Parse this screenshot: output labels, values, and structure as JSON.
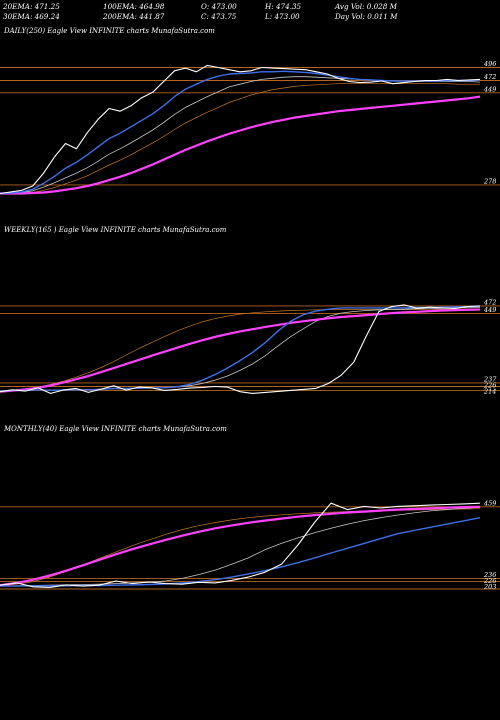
{
  "stats": {
    "ema20": "20EMA: 471.25",
    "ema100": "100EMA: 464.98",
    "open": "O: 473.00",
    "high": "H: 474.35",
    "avg_vol": "Avg Vol: 0.028  M",
    "ema30": "30EMA: 469.24",
    "ema200": "200EMA: 441.87",
    "close": "C: 473.75",
    "low": "L: 473.00",
    "day_vol": "Day Vol: 0.011 M"
  },
  "colors": {
    "background": "#000000",
    "level_line": "#b5651d",
    "price": "#ffffff",
    "ema_fast": "#3f6fe8",
    "ema_slow": "#ff40ff",
    "ema_mid": "#c8c8c8",
    "ema_brown": "#c87820"
  },
  "chart_data": [
    {
      "type": "line",
      "title": "DAILY(250) Eagle   View  INFINITE charts MunafaSutra.com",
      "ylim": [
        250,
        510
      ],
      "levels": [
        496,
        472,
        449,
        278
      ],
      "tick_labels": [
        "496",
        "472",
        "449",
        "278"
      ],
      "series": [
        {
          "role": "price",
          "values": [
            262,
            265,
            268,
            276,
            300,
            330,
            355,
            345,
            375,
            400,
            420,
            415,
            425,
            440,
            450,
            470,
            490,
            495,
            488,
            500,
            496,
            492,
            488,
            490,
            496,
            495,
            494,
            493,
            492,
            488,
            484,
            476,
            470,
            468,
            469,
            471,
            466,
            468,
            470,
            472,
            472,
            474,
            472,
            473,
            474
          ]
        },
        {
          "role": "ema_fast",
          "values": [
            262,
            263,
            265,
            270,
            281,
            294,
            309,
            320,
            334,
            349,
            364,
            374,
            386,
            398,
            410,
            425,
            442,
            456,
            465,
            474,
            480,
            484,
            485,
            486,
            488,
            488,
            489,
            488,
            487,
            485,
            482,
            479,
            476,
            474,
            473,
            472,
            471,
            471,
            471,
            471,
            471,
            472,
            472,
            472,
            473
          ]
        },
        {
          "role": "ema_mid",
          "values": [
            262,
            263,
            264,
            267,
            274,
            282,
            291,
            300,
            310,
            322,
            335,
            345,
            356,
            368,
            380,
            394,
            409,
            422,
            432,
            442,
            451,
            460,
            465,
            470,
            474,
            476,
            478,
            479,
            479,
            478,
            477,
            476,
            475,
            474,
            473,
            472,
            471,
            471,
            470,
            470,
            470,
            470,
            470,
            470,
            469
          ]
        },
        {
          "role": "ema_brown",
          "values": [
            262,
            262,
            263,
            264,
            268,
            273,
            280,
            287,
            295,
            305,
            315,
            324,
            334,
            345,
            356,
            368,
            381,
            393,
            403,
            413,
            422,
            431,
            438,
            445,
            450,
            455,
            458,
            461,
            463,
            464,
            465,
            466,
            466,
            466,
            466,
            466,
            466,
            466,
            466,
            466,
            466,
            466,
            465,
            465,
            465
          ]
        },
        {
          "role": "ema_slow",
          "values": [
            262,
            262,
            262,
            263,
            264,
            266,
            269,
            272,
            276,
            281,
            287,
            293,
            300,
            308,
            316,
            325,
            334,
            343,
            351,
            359,
            366,
            373,
            379,
            385,
            390,
            395,
            399,
            403,
            406,
            409,
            412,
            415,
            417,
            419,
            421,
            423,
            425,
            427,
            429,
            431,
            433,
            435,
            437,
            439,
            442
          ]
        }
      ]
    },
    {
      "type": "line",
      "title": "WEEKLY(165                    ) Eagle   View  INFINITE charts MunafaSutra.com",
      "ylim": [
        200,
        490
      ],
      "levels": [
        472,
        449,
        237,
        226,
        214
      ],
      "tick_labels": [
        "472",
        "449",
        "237",
        "226",
        "214"
      ],
      "series": [
        {
          "role": "price",
          "values": [
            210,
            216,
            212,
            222,
            205,
            215,
            220,
            208,
            218,
            228,
            215,
            224,
            222,
            214,
            217,
            221,
            223,
            226,
            224,
            210,
            205,
            208,
            211,
            214,
            217,
            220,
            235,
            260,
            300,
            380,
            455,
            470,
            475,
            465,
            468,
            466,
            464,
            470,
            472
          ]
        },
        {
          "role": "ema_fast",
          "values": [
            212,
            214,
            214,
            216,
            214,
            215,
            216,
            216,
            217,
            220,
            220,
            221,
            222,
            222,
            225,
            232,
            245,
            262,
            282,
            305,
            330,
            360,
            395,
            425,
            445,
            456,
            462,
            466,
            466,
            466,
            466,
            466,
            466,
            467,
            467,
            468,
            469,
            470,
            471
          ]
        },
        {
          "role": "ema_mid",
          "values": [
            212,
            213,
            214,
            215,
            215,
            216,
            216,
            217,
            218,
            219,
            219,
            220,
            221,
            222,
            224,
            228,
            235,
            245,
            258,
            275,
            295,
            320,
            350,
            378,
            402,
            425,
            440,
            450,
            455,
            458,
            460,
            461,
            462,
            463,
            464,
            465,
            466,
            467,
            468
          ]
        },
        {
          "role": "ema_brown",
          "values": [
            212,
            214,
            218,
            224,
            232,
            242,
            254,
            268,
            284,
            302,
            322,
            342,
            360,
            378,
            395,
            410,
            423,
            433,
            441,
            447,
            451,
            454,
            456,
            458,
            459,
            460,
            461,
            461,
            461,
            461,
            461,
            461,
            461,
            461,
            462,
            462,
            462,
            463,
            463
          ]
        },
        {
          "role": "ema_slow",
          "values": [
            210,
            213,
            217,
            222,
            229,
            238,
            248,
            258,
            270,
            282,
            295,
            307,
            320,
            332,
            344,
            356,
            367,
            377,
            386,
            394,
            401,
            408,
            414,
            420,
            425,
            430,
            434,
            438,
            441,
            444,
            447,
            450,
            452,
            454,
            456,
            458,
            459,
            460,
            461
          ]
        }
      ]
    },
    {
      "type": "line",
      "title": "MONTHLY(40) Eagle   View  INFINITE charts MunafaSutra.com",
      "ylim": [
        200,
        480
      ],
      "levels": [
        459,
        236,
        226,
        203
      ],
      "tick_labels": [
        "459",
        "236",
        "226",
        "203"
      ],
      "series": [
        {
          "role": "price",
          "values": [
            215,
            222,
            210,
            208,
            216,
            212,
            215,
            228,
            220,
            225,
            220,
            218,
            224,
            222,
            230,
            240,
            255,
            280,
            340,
            410,
            470,
            450,
            460,
            455,
            460,
            462,
            464,
            466,
            468,
            470
          ]
        },
        {
          "role": "ema_fast",
          "values": [
            212,
            212,
            213,
            213,
            213,
            214,
            214,
            215,
            216,
            217,
            219,
            222,
            226,
            232,
            240,
            250,
            260,
            272,
            285,
            300,
            315,
            330,
            345,
            360,
            375,
            385,
            395,
            405,
            415,
            425
          ]
        },
        {
          "role": "ema_mid",
          "values": [
            212,
            213,
            214,
            215,
            216,
            217,
            218,
            220,
            222,
            224,
            228,
            236,
            248,
            262,
            280,
            300,
            325,
            345,
            362,
            378,
            392,
            405,
            416,
            425,
            433,
            440,
            446,
            450,
            454,
            457
          ]
        },
        {
          "role": "ema_brown",
          "values": [
            212,
            218,
            226,
            240,
            258,
            278,
            298,
            318,
            338,
            356,
            373,
            388,
            400,
            410,
            418,
            425,
            430,
            434,
            437,
            440,
            442,
            444,
            446,
            447,
            448,
            449,
            450,
            451,
            452,
            453
          ]
        },
        {
          "role": "ema_slow",
          "values": [
            215,
            222,
            232,
            245,
            260,
            277,
            294,
            311,
            327,
            342,
            356,
            369,
            381,
            392,
            401,
            409,
            416,
            422,
            428,
            433,
            437,
            441,
            444,
            447,
            450,
            452,
            454,
            456,
            458,
            459
          ]
        }
      ]
    }
  ]
}
